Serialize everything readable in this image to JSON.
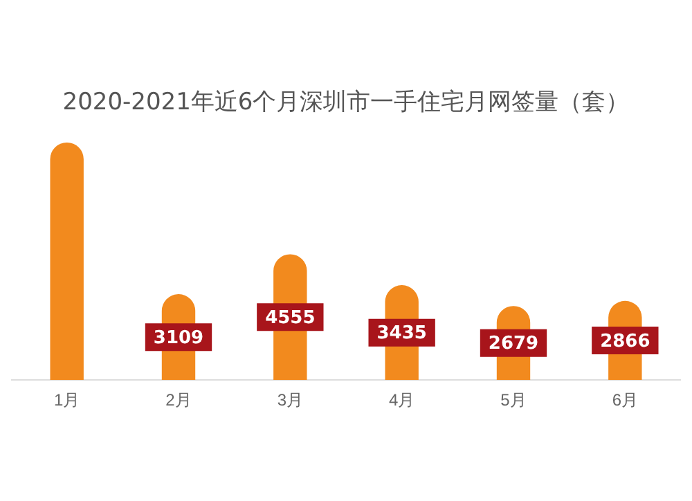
{
  "chart_data": {
    "type": "bar",
    "title": "2020-2021年近6个月深圳市一手住宅月网签量（套）",
    "categories": [
      "1月",
      "2月",
      "3月",
      "4月",
      "5月",
      "6月"
    ],
    "values": [
      8600,
      3109,
      4555,
      3435,
      2679,
      2866
    ],
    "value_labels": [
      null,
      "3109",
      "4555",
      "3435",
      "2679",
      "2866"
    ],
    "color": "#f28a1e",
    "grid": false,
    "legend": false
  }
}
